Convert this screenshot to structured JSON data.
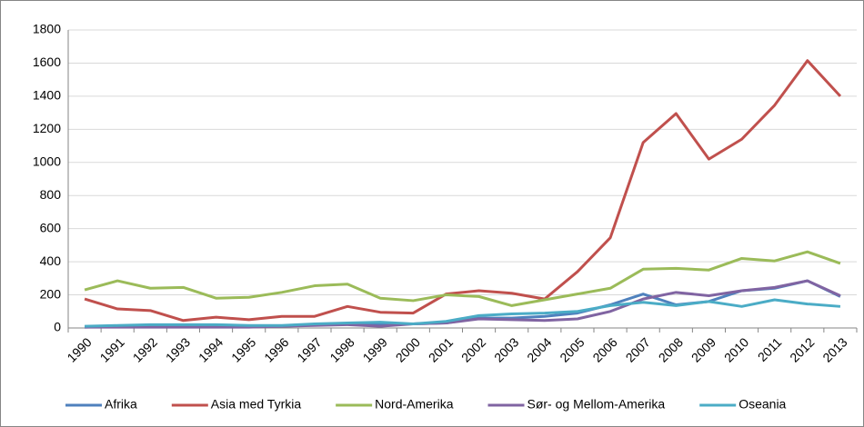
{
  "chart_data": {
    "type": "line",
    "categories": [
      "1990",
      "1991",
      "1992",
      "1993",
      "1994",
      "1995",
      "1996",
      "1997",
      "1998",
      "1999",
      "2000",
      "2001",
      "2002",
      "2003",
      "2004",
      "2005",
      "2006",
      "2007",
      "2008",
      "2009",
      "2010",
      "2011",
      "2012",
      "2013"
    ],
    "series": [
      {
        "name": "Afrika",
        "color": "#4f81bd",
        "values": [
          5,
          10,
          10,
          15,
          15,
          10,
          10,
          20,
          25,
          20,
          25,
          30,
          60,
          60,
          70,
          90,
          140,
          205,
          140,
          160,
          225,
          240,
          285,
          190
        ]
      },
      {
        "name": "Asia med Tyrkia",
        "color": "#c0504d",
        "values": [
          175,
          115,
          105,
          45,
          65,
          50,
          70,
          70,
          130,
          95,
          90,
          205,
          225,
          210,
          175,
          340,
          545,
          1120,
          1295,
          1020,
          1140,
          1345,
          1615,
          1400
        ]
      },
      {
        "name": "Nord-Amerika",
        "color": "#9bbb59",
        "values": [
          230,
          285,
          240,
          245,
          180,
          185,
          215,
          255,
          265,
          180,
          165,
          200,
          190,
          135,
          170,
          205,
          240,
          355,
          360,
          350,
          420,
          405,
          460,
          390
        ]
      },
      {
        "name": "Sør- og Mellom-Amerika",
        "color": "#8064a2",
        "values": [
          5,
          5,
          5,
          5,
          5,
          5,
          10,
          15,
          20,
          10,
          25,
          30,
          55,
          50,
          45,
          55,
          100,
          175,
          215,
          195,
          225,
          245,
          285,
          195
        ]
      },
      {
        "name": "Oseania",
        "color": "#4bacc6",
        "values": [
          10,
          15,
          20,
          20,
          20,
          15,
          15,
          25,
          30,
          35,
          25,
          40,
          75,
          85,
          90,
          100,
          135,
          155,
          135,
          160,
          130,
          170,
          145,
          130
        ]
      }
    ],
    "ylim": [
      0,
      1800
    ],
    "yticks": [
      0,
      200,
      400,
      600,
      800,
      1000,
      1200,
      1400,
      1600,
      1800
    ],
    "grid": true,
    "legend": "bottom"
  }
}
